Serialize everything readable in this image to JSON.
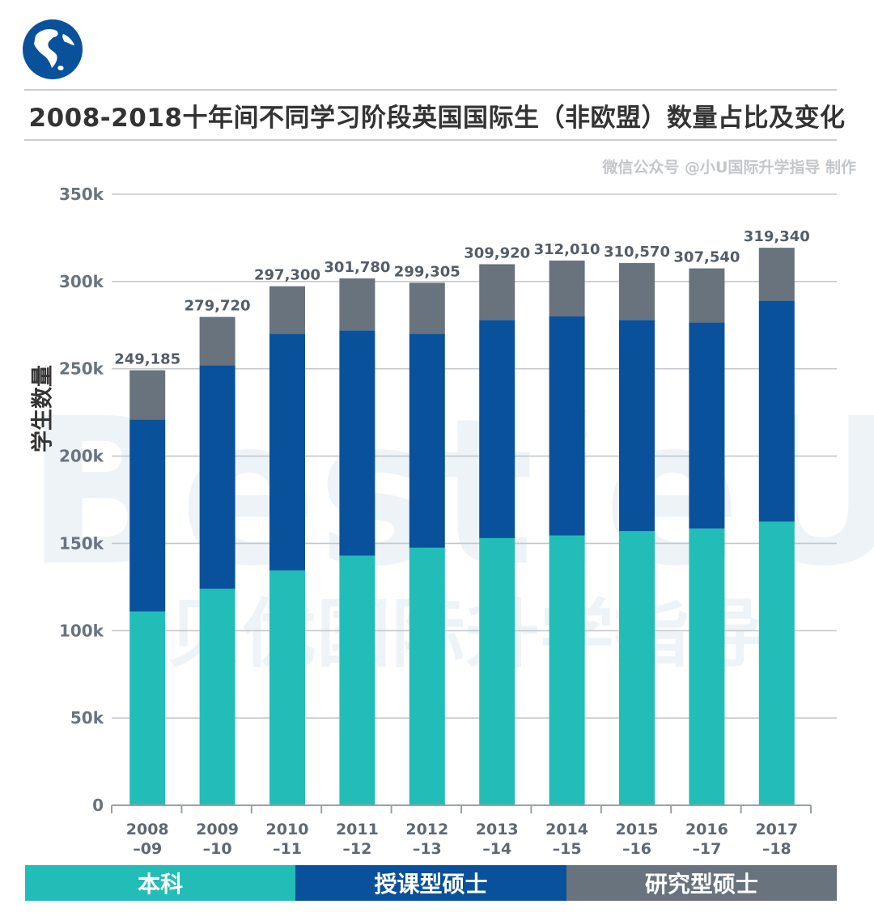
{
  "header": {
    "title": "2008-2018十年间不同学习阶段英国国际生（非欧盟）数量占比及变化",
    "credit": "微信公众号 @小U国际升学指导 制作",
    "globe_icon": "globe-americas-icon"
  },
  "watermark": {
    "line1": "BestieU",
    "line2": "贝优国际升学指导"
  },
  "chart_data": {
    "type": "bar",
    "stacked": true,
    "ylabel": "学生数量",
    "ylim": [
      0,
      350000
    ],
    "yticks": [
      0,
      50000,
      100000,
      150000,
      200000,
      250000,
      300000,
      350000
    ],
    "ytick_labels": [
      "0",
      "50k",
      "100k",
      "150k",
      "200k",
      "250k",
      "300k",
      "350k"
    ],
    "grid": true,
    "legend_position": "bottom",
    "categories": [
      {
        "line1": "2008",
        "line2": "–09"
      },
      {
        "line1": "2009",
        "line2": "–10"
      },
      {
        "line1": "2010",
        "line2": "–11"
      },
      {
        "line1": "2011",
        "line2": "–12"
      },
      {
        "line1": "2012",
        "line2": "–13"
      },
      {
        "line1": "2013",
        "line2": "–14"
      },
      {
        "line1": "2014",
        "line2": "–15"
      },
      {
        "line1": "2015",
        "line2": "–16"
      },
      {
        "line1": "2016",
        "line2": "–17"
      },
      {
        "line1": "2017",
        "line2": "–18"
      }
    ],
    "totals": [
      "249,185",
      "279,720",
      "297,300",
      "301,780",
      "299,305",
      "309,920",
      "312,010",
      "310,570",
      "307,540",
      "319,340"
    ],
    "series": [
      {
        "name": "本科",
        "color": "#23bdb8",
        "values": [
          111000,
          124000,
          134500,
          143000,
          147500,
          153000,
          154500,
          157000,
          158500,
          162500
        ]
      },
      {
        "name": "授课型硕士",
        "color": "#0a519c",
        "values": [
          110000,
          128000,
          135500,
          129000,
          122500,
          125000,
          125500,
          121000,
          118000,
          126500
        ]
      },
      {
        "name": "研究型硕士",
        "color": "#68737d",
        "values": [
          28185,
          27720,
          27300,
          29780,
          29305,
          31920,
          32010,
          32570,
          31040,
          30340
        ]
      }
    ]
  }
}
